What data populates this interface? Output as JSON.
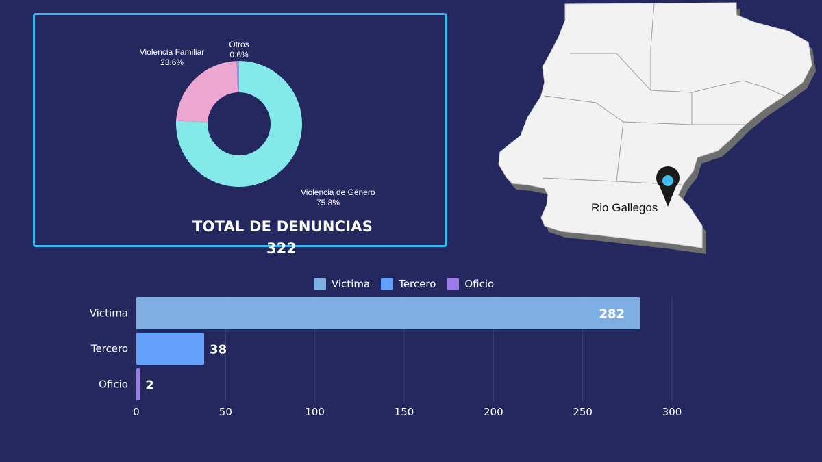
{
  "colors": {
    "background": "#25275f",
    "panel_border": "#36b9ee",
    "gridline": "#3c3f7a",
    "map_land": "#f2f2f2",
    "map_shadow": "#6e6e6e",
    "map_border": "#9b9b9b",
    "pin": "#1a1a1a",
    "pin_dot": "#3fc1f0"
  },
  "donut": {
    "total_label": "TOTAL DE DENUNCIAS",
    "total_value": "322"
  },
  "map": {
    "pin_label": "Rio Gallegos",
    "icon": "map-pin-icon"
  },
  "chart_data": [
    {
      "type": "pie",
      "variant": "donut",
      "slices": [
        {
          "label": "Violencia de Género",
          "value": 75.8,
          "display": "75.8%",
          "color": "#84e9e9"
        },
        {
          "label": "Violencia Familiar",
          "value": 23.6,
          "display": "23.6%",
          "color": "#eba7d1"
        },
        {
          "label": "Otros",
          "value": 0.6,
          "display": "0.6%",
          "color": "#8e9ad6"
        }
      ]
    },
    {
      "type": "bar",
      "orientation": "horizontal",
      "categories": [
        "Victima",
        "Tercero",
        "Oficio"
      ],
      "values": [
        282,
        38,
        2
      ],
      "colors": [
        "#7eaee2",
        "#62a0fb",
        "#9a7be8"
      ],
      "legend": [
        "Victima",
        "Tercero",
        "Oficio"
      ],
      "legend_placement": "top",
      "xlim": [
        0,
        300
      ],
      "ticks": [
        0,
        50,
        100,
        150,
        200,
        250,
        300
      ],
      "grid": true
    }
  ]
}
